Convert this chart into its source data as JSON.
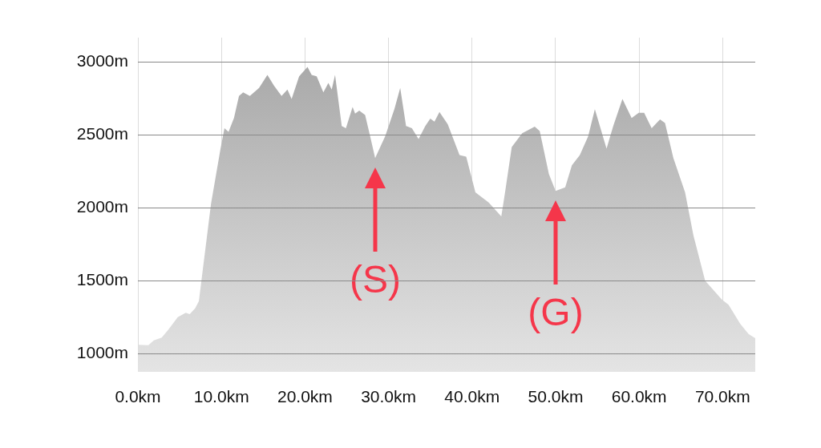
{
  "chart_data": {
    "type": "area",
    "x": [
      0,
      1.25,
      1.9,
      2.85,
      3.65,
      4.77,
      5.73,
      6.2,
      6.85,
      7.3,
      7.8,
      8.76,
      9.88,
      10.36,
      10.85,
      11.5,
      12.1,
      12.6,
      13.4,
      14.5,
      15.5,
      16.3,
      17.2,
      17.9,
      18.4,
      19.3,
      20.3,
      20.8,
      21.4,
      22.2,
      22.8,
      23.2,
      23.6,
      24.4,
      24.9,
      25.7,
      26,
      26.5,
      27.2,
      27.8,
      28.4,
      29.6,
      30.7,
      31.4,
      32.1,
      32.8,
      33.6,
      34.4,
      35,
      35.5,
      36.1,
      37.1,
      38.5,
      39.3,
      40.4,
      42,
      43.5,
      43.95,
      44.75,
      46,
      47.5,
      48.1,
      49.2,
      50,
      51.15,
      51.95,
      52.9,
      53.9,
      54.7,
      56.1,
      56.9,
      58,
      59.1,
      59.95,
      60.6,
      61.5,
      62.5,
      63.1,
      64.1,
      65.5,
      66.5,
      67.9,
      69.9,
      70.7,
      72.1,
      73.1,
      73.9
    ],
    "series": [
      {
        "color": "#a4a4a4",
        "values": [
          1060,
          1058,
          1090,
          1110,
          1165,
          1250,
          1280,
          1270,
          1310,
          1360,
          1590,
          2030,
          2400,
          2545,
          2520,
          2615,
          2765,
          2790,
          2765,
          2820,
          2910,
          2835,
          2765,
          2810,
          2745,
          2900,
          2965,
          2910,
          2900,
          2790,
          2855,
          2810,
          2910,
          2560,
          2545,
          2690,
          2645,
          2665,
          2635,
          2490,
          2340,
          2490,
          2675,
          2820,
          2560,
          2545,
          2470,
          2560,
          2610,
          2590,
          2655,
          2570,
          2360,
          2350,
          2105,
          2035,
          1940,
          2105,
          2415,
          2510,
          2555,
          2525,
          2230,
          2115,
          2140,
          2290,
          2360,
          2490,
          2675,
          2405,
          2560,
          2745,
          2615,
          2650,
          2650,
          2545,
          2605,
          2580,
          2340,
          2105,
          1810,
          1500,
          1370,
          1335,
          1205,
          1135,
          1105
        ]
      }
    ],
    "xlim": [
      0,
      73.9
    ],
    "ylim": [
      875,
      3165
    ],
    "xticks": [
      {
        "value": 0,
        "label": "0.0km"
      },
      {
        "value": 10,
        "label": "10.0km"
      },
      {
        "value": 20,
        "label": "20.0km"
      },
      {
        "value": 30,
        "label": "30.0km"
      },
      {
        "value": 40,
        "label": "40.0km"
      },
      {
        "value": 50,
        "label": "50.0km"
      },
      {
        "value": 60,
        "label": "60.0km"
      },
      {
        "value": 70,
        "label": "70.0km"
      }
    ],
    "yticks": [
      {
        "value": 1000,
        "label": "1000m"
      },
      {
        "value": 1500,
        "label": "1500m"
      },
      {
        "value": 2000,
        "label": "2000m"
      },
      {
        "value": 2500,
        "label": "2500m"
      },
      {
        "value": 3000,
        "label": "3000m"
      }
    ],
    "annotations": [
      {
        "text": "(S)",
        "x": 28.4,
        "y": 2340
      },
      {
        "text": "(G)",
        "x": 50,
        "y": 2115
      }
    ],
    "grid": true,
    "legend": false,
    "marker": "none"
  }
}
